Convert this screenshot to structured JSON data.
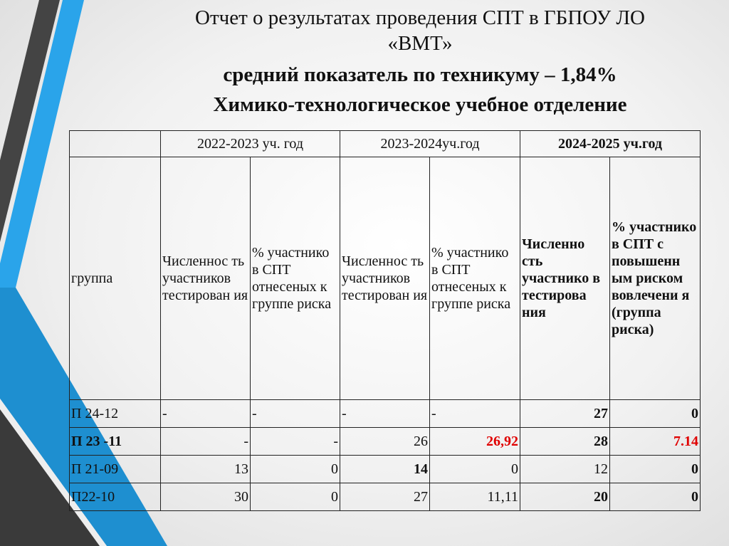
{
  "title": {
    "line1": "Отчет о результатах проведения СПТ в ГБПОУ ЛО",
    "line2": "«ВМТ»",
    "line3": "средний показатель по техникуму – 1,84%",
    "line4": "Химико-технологическое учебное отделение"
  },
  "table": {
    "years": [
      "2022-2023 уч. год",
      "2023-2024уч.год",
      "2024-2025 уч.год"
    ],
    "group_header": "группа",
    "subheaders": [
      "Численнос ть участников тестирован ия",
      "% участнико в СПТ отнесеных к группе риска",
      "Численнос ть участников тестирован ия",
      "% участнико в СПТ отнесеных к группе риска",
      "Численно сть участнико в тестирова ния",
      "% участнико в СПТ с повышенн ым риском вовлечени я (группа риска)"
    ],
    "rows": [
      {
        "group": "П 24-12",
        "cells": [
          "-",
          "-",
          "-",
          "-",
          "27",
          "0"
        ]
      },
      {
        "group": "П 23 -11",
        "cells": [
          "-",
          "-",
          "26",
          "26,92",
          "28",
          "7.14"
        ]
      },
      {
        "group": "П 21-09",
        "cells": [
          "13",
          "0",
          "14",
          "0",
          "12",
          "0"
        ]
      },
      {
        "group": "П22-10",
        "cells": [
          "30",
          "0",
          "27",
          "11,11",
          "20",
          "0"
        ]
      }
    ]
  },
  "colors": {
    "accent_blue": "#2a9fe0",
    "dark_stripe": "#3c3c3c",
    "highlight_red": "#e00000"
  }
}
